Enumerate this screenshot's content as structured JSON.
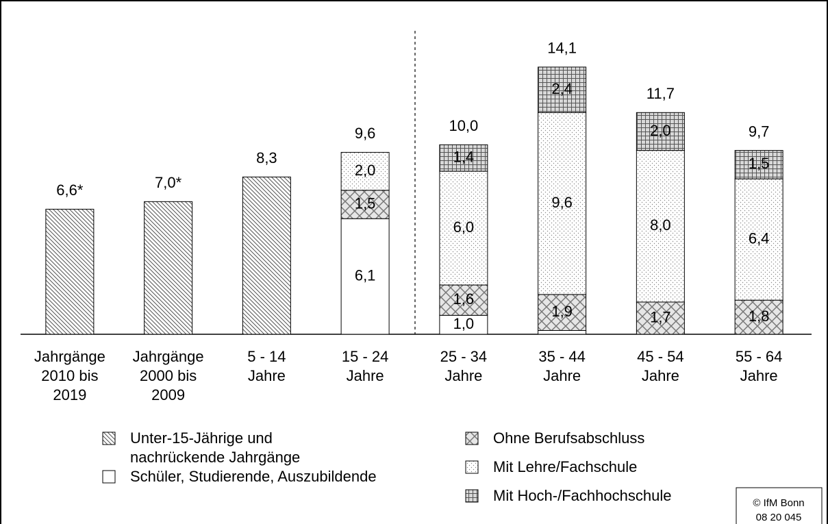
{
  "chart_data": {
    "type": "stacked_bar",
    "categories": [
      [
        "Jahrgänge",
        "2010 bis",
        "2019"
      ],
      [
        "Jahrgänge",
        "2000 bis",
        "2009"
      ],
      [
        "5 - 14",
        "Jahre"
      ],
      [
        "15 - 24",
        "Jahre"
      ],
      [
        "25 - 34",
        "Jahre"
      ],
      [
        "35 - 44",
        "Jahre"
      ],
      [
        "45 - 54",
        "Jahre"
      ],
      [
        "55 - 64",
        "Jahre"
      ]
    ],
    "ylim": [
      0,
      15
    ],
    "series": [
      {
        "name": "Unter-15-Jährige und nachrückende Jahrgänge",
        "pattern": "hatch",
        "values": [
          6.6,
          7.0,
          8.3,
          null,
          null,
          null,
          null,
          null
        ],
        "value_labels": [
          "6,6*",
          "7,0*",
          "8,3",
          null,
          null,
          null,
          null,
          null
        ]
      },
      {
        "name": "Schüler, Studierende, Auszubildende",
        "pattern": "white",
        "values": [
          null,
          null,
          null,
          6.1,
          1.0,
          0.2,
          null,
          null
        ],
        "value_labels": [
          null,
          null,
          null,
          "6,1",
          "1,0",
          null,
          null,
          null
        ]
      },
      {
        "name": "Ohne Berufsabschluss",
        "pattern": "cross",
        "values": [
          null,
          null,
          null,
          1.5,
          1.6,
          1.9,
          1.7,
          1.8
        ],
        "value_labels": [
          null,
          null,
          null,
          "1,5",
          "1,6",
          "1,9",
          "1,7",
          "1,8"
        ]
      },
      {
        "name": "Mit Lehre/Fachschule",
        "pattern": "dots",
        "values": [
          null,
          null,
          null,
          2.0,
          6.0,
          9.6,
          8.0,
          6.4
        ],
        "value_labels": [
          null,
          null,
          null,
          "2,0",
          "6,0",
          "9,6",
          "8,0",
          "6,4"
        ]
      },
      {
        "name": "Mit Hoch-/Fachhochschule",
        "pattern": "grid",
        "values": [
          null,
          null,
          null,
          null,
          1.4,
          2.4,
          2.0,
          1.5
        ],
        "value_labels": [
          null,
          null,
          null,
          null,
          "1,4",
          "2,4",
          "2,0",
          "1,5"
        ]
      }
    ],
    "totals": {
      "values": [
        null,
        null,
        null,
        9.6,
        10.0,
        14.1,
        11.7,
        9.7
      ],
      "value_labels": [
        null,
        null,
        null,
        "9,6",
        "10,0",
        "14,1",
        "11,7",
        "9,7"
      ]
    },
    "source": [
      "© IfM Bonn",
      "08 20 045"
    ]
  }
}
